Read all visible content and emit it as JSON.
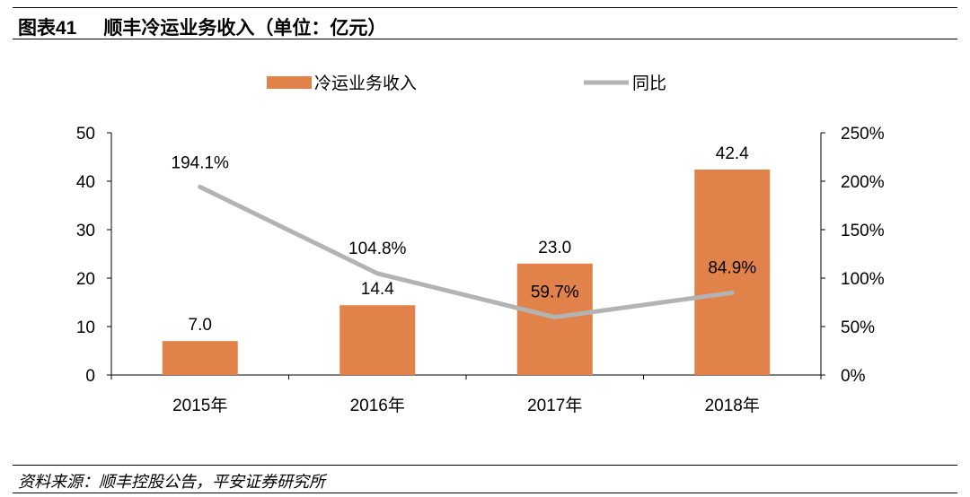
{
  "header": {
    "figure_label": "图表41",
    "title": "顺丰冷运业务收入（单位：亿元）"
  },
  "footer": {
    "source": "资料来源：顺丰控股公告，平安证券研究所"
  },
  "colors": {
    "bar": "#E0824A",
    "line": "#B3B3B3",
    "axis": "#000000"
  },
  "chart_data": {
    "type": "bar",
    "categories": [
      "2015年",
      "2016年",
      "2017年",
      "2018年"
    ],
    "series": [
      {
        "name": "冷运业务收入",
        "type": "bar",
        "axis": "left",
        "values": [
          7.0,
          14.4,
          23.0,
          42.4
        ],
        "labels": [
          "7.0",
          "14.4",
          "23.0",
          "42.4"
        ]
      },
      {
        "name": "同比",
        "type": "line",
        "axis": "right",
        "values": [
          194.1,
          104.8,
          59.7,
          84.9
        ],
        "labels": [
          "194.1%",
          "104.8%",
          "59.7%",
          "84.9%"
        ]
      }
    ],
    "y_left": {
      "ylim": [
        0,
        50
      ],
      "ticks": [
        "0",
        "10",
        "20",
        "30",
        "40",
        "50"
      ]
    },
    "y_right": {
      "ylim": [
        0,
        250
      ],
      "ticks": [
        "0%",
        "50%",
        "100%",
        "150%",
        "200%",
        "250%"
      ]
    },
    "legend_position": "top",
    "grid": false
  }
}
